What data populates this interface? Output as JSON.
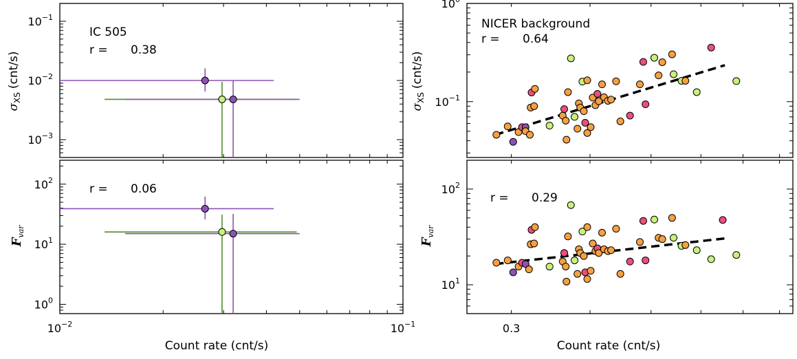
{
  "chart_data": [
    {
      "type": "scatter",
      "panel": "top-left",
      "title": "",
      "annotation": "IC 505",
      "r_label": "r =",
      "r_value": "0.38",
      "xscale": "log",
      "yscale": "log",
      "xlim": [
        0.01,
        0.1
      ],
      "ylim": [
        0.0005,
        0.2
      ],
      "ylabel_symbol": "σ",
      "ylabel_sub": "XS",
      "ylabel_unit": "(cnt/s)",
      "yticks": [
        {
          "value": 0.1,
          "base": "10",
          "exp": "−1"
        },
        {
          "value": 0.01,
          "base": "10",
          "exp": "−2"
        },
        {
          "value": 0.001,
          "base": "10",
          "exp": "−3"
        }
      ],
      "points": [
        {
          "x": 0.0265,
          "y": 0.01,
          "xerr": [
            0.01,
            0.042
          ],
          "yerr": [
            0.0065,
            0.016
          ],
          "color": "#8c52b5",
          "line": "#8c52b5"
        },
        {
          "x": 0.0297,
          "y": 0.0048,
          "xerr": [
            0.0135,
            0.049
          ],
          "yerr": [
            0.0005,
            0.0095
          ],
          "color": "#c8f07a",
          "line": "#4e8a2c"
        },
        {
          "x": 0.032,
          "y": 0.0048,
          "xerr": [
            0.0155,
            0.05
          ],
          "yerr": [
            0.0005,
            0.01
          ],
          "color": "#8c52b5",
          "line": "#8c52b5"
        }
      ]
    },
    {
      "type": "scatter",
      "panel": "bottom-left",
      "title": "",
      "r_label": "r =",
      "r_value": "0.06",
      "xscale": "log",
      "yscale": "log",
      "xlim": [
        0.01,
        0.1
      ],
      "ylim": [
        0.7,
        250
      ],
      "xlabel": "Count rate (cnt/s)",
      "ylabel_symbol": "F",
      "ylabel_sub": "var",
      "yticks": [
        {
          "value": 100,
          "base": "10",
          "exp": "2"
        },
        {
          "value": 10,
          "base": "10",
          "exp": "1"
        },
        {
          "value": 1,
          "base": "10",
          "exp": "0"
        }
      ],
      "xticks": [
        {
          "value": 0.01,
          "base": "10",
          "exp": "−2"
        },
        {
          "value": 0.1,
          "base": "10",
          "exp": "−1"
        }
      ],
      "points": [
        {
          "x": 0.0265,
          "y": 39,
          "xerr": [
            0.01,
            0.042
          ],
          "yerr": [
            26,
            62
          ],
          "color": "#8c52b5",
          "line": "#8c52b5"
        },
        {
          "x": 0.0297,
          "y": 16,
          "xerr": [
            0.0135,
            0.049
          ],
          "yerr": [
            0.7,
            31
          ],
          "color": "#c8f07a",
          "line": "#4e8a2c"
        },
        {
          "x": 0.032,
          "y": 15,
          "xerr": [
            0.0155,
            0.05
          ],
          "yerr": [
            0.7,
            32
          ],
          "color": "#8c52b5",
          "line": "#8c52b5"
        }
      ]
    },
    {
      "type": "scatter",
      "panel": "top-right",
      "title": "",
      "annotation": "NICER background",
      "r_label": "r =",
      "r_value": "0.64",
      "xscale": "log",
      "yscale": "log",
      "xlim": [
        0.255,
        0.84
      ],
      "ylim": [
        0.027,
        1.0
      ],
      "ylabel_symbol": "σ",
      "ylabel_sub": "XS",
      "ylabel_unit": "(cnt/s)",
      "yticks": [
        {
          "value": 1,
          "base": "10",
          "exp": "0"
        },
        {
          "value": 0.1,
          "base": "10",
          "exp": "−1"
        }
      ],
      "fit": {
        "x": [
          0.283,
          0.655
        ],
        "y": [
          0.046,
          0.235
        ]
      },
      "points": [
        {
          "x": 0.284,
          "y": 0.046,
          "color": "#f5a042"
        },
        {
          "x": 0.296,
          "y": 0.056,
          "color": "#f5a042"
        },
        {
          "x": 0.302,
          "y": 0.039,
          "color": "#8c52b5"
        },
        {
          "x": 0.308,
          "y": 0.049,
          "color": "#f5a042"
        },
        {
          "x": 0.312,
          "y": 0.055,
          "color": "#e8517a"
        },
        {
          "x": 0.316,
          "y": 0.055,
          "color": "#8c52b5"
        },
        {
          "x": 0.316,
          "y": 0.05,
          "color": "#f5a042"
        },
        {
          "x": 0.321,
          "y": 0.046,
          "color": "#f5a042"
        },
        {
          "x": 0.322,
          "y": 0.087,
          "color": "#f5a042"
        },
        {
          "x": 0.323,
          "y": 0.124,
          "color": "#e8517a"
        },
        {
          "x": 0.326,
          "y": 0.09,
          "color": "#f5a042"
        },
        {
          "x": 0.327,
          "y": 0.135,
          "color": "#f5a042"
        },
        {
          "x": 0.345,
          "y": 0.057,
          "color": "#c8f07a"
        },
        {
          "x": 0.362,
          "y": 0.072,
          "color": "#f5a042"
        },
        {
          "x": 0.364,
          "y": 0.084,
          "color": "#e8517a"
        },
        {
          "x": 0.366,
          "y": 0.064,
          "color": "#f5a042"
        },
        {
          "x": 0.367,
          "y": 0.041,
          "color": "#f5a042"
        },
        {
          "x": 0.369,
          "y": 0.125,
          "color": "#f5a042"
        },
        {
          "x": 0.373,
          "y": 0.276,
          "color": "#c8f07a"
        },
        {
          "x": 0.378,
          "y": 0.07,
          "color": "#c8f07a"
        },
        {
          "x": 0.382,
          "y": 0.053,
          "color": "#f5a042"
        },
        {
          "x": 0.384,
          "y": 0.096,
          "color": "#f5a042"
        },
        {
          "x": 0.386,
          "y": 0.087,
          "color": "#f5a042"
        },
        {
          "x": 0.389,
          "y": 0.16,
          "color": "#c8f07a"
        },
        {
          "x": 0.391,
          "y": 0.08,
          "color": "#f5a042"
        },
        {
          "x": 0.393,
          "y": 0.061,
          "color": "#e8517a"
        },
        {
          "x": 0.396,
          "y": 0.165,
          "color": "#f5a042"
        },
        {
          "x": 0.396,
          "y": 0.048,
          "color": "#f5a042"
        },
        {
          "x": 0.401,
          "y": 0.055,
          "color": "#f5a042"
        },
        {
          "x": 0.404,
          "y": 0.11,
          "color": "#f5a042"
        },
        {
          "x": 0.408,
          "y": 0.092,
          "color": "#f5a042"
        },
        {
          "x": 0.411,
          "y": 0.12,
          "color": "#e8517a"
        },
        {
          "x": 0.413,
          "y": 0.101,
          "color": "#f5a042"
        },
        {
          "x": 0.418,
          "y": 0.15,
          "color": "#f5a042"
        },
        {
          "x": 0.421,
          "y": 0.111,
          "color": "#f5a042"
        },
        {
          "x": 0.427,
          "y": 0.102,
          "color": "#f5a042"
        },
        {
          "x": 0.432,
          "y": 0.105,
          "color": "#f5a042"
        },
        {
          "x": 0.44,
          "y": 0.161,
          "color": "#f5a042"
        },
        {
          "x": 0.447,
          "y": 0.063,
          "color": "#f5a042"
        },
        {
          "x": 0.463,
          "y": 0.072,
          "color": "#e8517a"
        },
        {
          "x": 0.48,
          "y": 0.15,
          "color": "#f5a042"
        },
        {
          "x": 0.486,
          "y": 0.254,
          "color": "#e8517a"
        },
        {
          "x": 0.49,
          "y": 0.094,
          "color": "#e8517a"
        },
        {
          "x": 0.506,
          "y": 0.28,
          "color": "#c8f07a"
        },
        {
          "x": 0.514,
          "y": 0.185,
          "color": "#f5a042"
        },
        {
          "x": 0.521,
          "y": 0.252,
          "color": "#f5a042"
        },
        {
          "x": 0.54,
          "y": 0.303,
          "color": "#f5a042"
        },
        {
          "x": 0.543,
          "y": 0.19,
          "color": "#c8f07a"
        },
        {
          "x": 0.559,
          "y": 0.163,
          "color": "#c8f07a"
        },
        {
          "x": 0.567,
          "y": 0.163,
          "color": "#f5a042"
        },
        {
          "x": 0.591,
          "y": 0.125,
          "color": "#c8f07a"
        },
        {
          "x": 0.623,
          "y": 0.355,
          "color": "#e8517a"
        },
        {
          "x": 0.683,
          "y": 0.162,
          "color": "#c8f07a"
        }
      ]
    },
    {
      "type": "scatter",
      "panel": "bottom-right",
      "title": "",
      "r_label": "r =",
      "r_value": "0.29",
      "xscale": "log",
      "yscale": "log",
      "xlim": [
        0.255,
        0.84
      ],
      "ylim": [
        5,
        200
      ],
      "xlabel": "Count rate (cnt/s)",
      "ylabel_symbol": "F",
      "ylabel_sub": "var",
      "yticks": [
        {
          "value": 100,
          "base": "10",
          "exp": "2"
        },
        {
          "value": 10,
          "base": "10",
          "exp": "1"
        }
      ],
      "xticks": [
        {
          "value": 0.3,
          "label": "0.3"
        }
      ],
      "fit": {
        "x": [
          0.283,
          0.655
        ],
        "y": [
          16.5,
          30.5
        ]
      },
      "points": [
        {
          "x": 0.284,
          "y": 17.0,
          "color": "#f5a042"
        },
        {
          "x": 0.296,
          "y": 18.0,
          "color": "#f5a042"
        },
        {
          "x": 0.302,
          "y": 13.5,
          "color": "#8c52b5"
        },
        {
          "x": 0.308,
          "y": 15.5,
          "color": "#f5a042"
        },
        {
          "x": 0.312,
          "y": 17.0,
          "color": "#e8517a"
        },
        {
          "x": 0.316,
          "y": 16.5,
          "color": "#8c52b5"
        },
        {
          "x": 0.32,
          "y": 14.5,
          "color": "#f5a042"
        },
        {
          "x": 0.322,
          "y": 26.5,
          "color": "#f5a042"
        },
        {
          "x": 0.323,
          "y": 37.5,
          "color": "#e8517a"
        },
        {
          "x": 0.326,
          "y": 27.0,
          "color": "#f5a042"
        },
        {
          "x": 0.327,
          "y": 40.0,
          "color": "#f5a042"
        },
        {
          "x": 0.345,
          "y": 15.5,
          "color": "#c8f07a"
        },
        {
          "x": 0.362,
          "y": 17.5,
          "color": "#f5a042"
        },
        {
          "x": 0.364,
          "y": 21.5,
          "color": "#e8517a"
        },
        {
          "x": 0.366,
          "y": 15.5,
          "color": "#f5a042"
        },
        {
          "x": 0.367,
          "y": 10.8,
          "color": "#f5a042"
        },
        {
          "x": 0.369,
          "y": 32.0,
          "color": "#f5a042"
        },
        {
          "x": 0.373,
          "y": 68.0,
          "color": "#c8f07a"
        },
        {
          "x": 0.378,
          "y": 18.0,
          "color": "#c8f07a"
        },
        {
          "x": 0.382,
          "y": 13.0,
          "color": "#f5a042"
        },
        {
          "x": 0.384,
          "y": 23.5,
          "color": "#f5a042"
        },
        {
          "x": 0.386,
          "y": 21.5,
          "color": "#f5a042"
        },
        {
          "x": 0.389,
          "y": 36.0,
          "color": "#c8f07a"
        },
        {
          "x": 0.391,
          "y": 20.0,
          "color": "#f5a042"
        },
        {
          "x": 0.393,
          "y": 13.5,
          "color": "#e8517a"
        },
        {
          "x": 0.396,
          "y": 40.0,
          "color": "#f5a042"
        },
        {
          "x": 0.396,
          "y": 11.5,
          "color": "#f5a042"
        },
        {
          "x": 0.401,
          "y": 14.0,
          "color": "#f5a042"
        },
        {
          "x": 0.404,
          "y": 27.0,
          "color": "#f5a042"
        },
        {
          "x": 0.408,
          "y": 22.5,
          "color": "#f5a042"
        },
        {
          "x": 0.411,
          "y": 24.0,
          "color": "#e8517a"
        },
        {
          "x": 0.413,
          "y": 21.5,
          "color": "#f5a042"
        },
        {
          "x": 0.418,
          "y": 35.0,
          "color": "#f5a042"
        },
        {
          "x": 0.421,
          "y": 23.5,
          "color": "#f5a042"
        },
        {
          "x": 0.427,
          "y": 22.5,
          "color": "#f5a042"
        },
        {
          "x": 0.432,
          "y": 23.0,
          "color": "#f5a042"
        },
        {
          "x": 0.44,
          "y": 38.5,
          "color": "#f5a042"
        },
        {
          "x": 0.447,
          "y": 13.0,
          "color": "#f5a042"
        },
        {
          "x": 0.463,
          "y": 17.5,
          "color": "#e8517a"
        },
        {
          "x": 0.48,
          "y": 28.0,
          "color": "#f5a042"
        },
        {
          "x": 0.486,
          "y": 46.5,
          "color": "#e8517a"
        },
        {
          "x": 0.49,
          "y": 18.0,
          "color": "#e8517a"
        },
        {
          "x": 0.506,
          "y": 48.0,
          "color": "#c8f07a"
        },
        {
          "x": 0.514,
          "y": 31.0,
          "color": "#f5a042"
        },
        {
          "x": 0.521,
          "y": 30.0,
          "color": "#f5a042"
        },
        {
          "x": 0.54,
          "y": 50.0,
          "color": "#f5a042"
        },
        {
          "x": 0.543,
          "y": 31.0,
          "color": "#c8f07a"
        },
        {
          "x": 0.559,
          "y": 25.5,
          "color": "#c8f07a"
        },
        {
          "x": 0.567,
          "y": 26.0,
          "color": "#f5a042"
        },
        {
          "x": 0.591,
          "y": 23.0,
          "color": "#c8f07a"
        },
        {
          "x": 0.623,
          "y": 18.5,
          "color": "#c8f07a"
        },
        {
          "x": 0.65,
          "y": 47.5,
          "color": "#e8517a"
        },
        {
          "x": 0.683,
          "y": 20.5,
          "color": "#c8f07a"
        }
      ]
    }
  ]
}
